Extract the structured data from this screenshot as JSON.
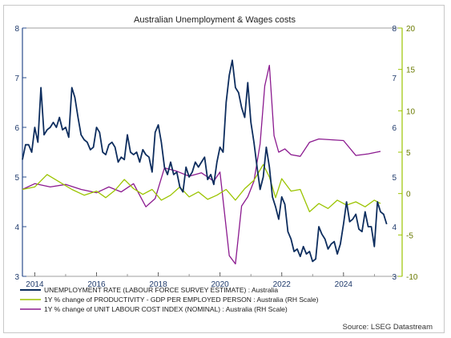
{
  "chart_data": {
    "type": "line",
    "title": "Australian Unemployment & Wages costs",
    "source": "Source: LSEG Datastream",
    "x_ticks": [
      "2014",
      "2016",
      "2018",
      "2020",
      "2022",
      "2024"
    ],
    "xlim": [
      2013.6,
      2025.9
    ],
    "left_axis": {
      "ylim": [
        3,
        8
      ],
      "ticks": [
        "3",
        "4",
        "5",
        "6",
        "7",
        "8"
      ],
      "color": "#2b4e8c"
    },
    "right_axis": {
      "ylim": [
        -10,
        20
      ],
      "ticks": [
        "-10",
        "-5",
        "0",
        "5",
        "10",
        "15",
        "20"
      ],
      "color": "#9bc400"
    },
    "grid": false,
    "legend_position": "bottom-left",
    "series": [
      {
        "name": "UNEMPLOYMENT RATE (LABOUR FORCE SURVEY ESTIMATE) : Australia",
        "axis": "left",
        "color": "#0d2d5e",
        "x": [
          2013.6,
          2013.7,
          2013.8,
          2013.9,
          2014.0,
          2014.1,
          2014.2,
          2014.3,
          2014.4,
          2014.5,
          2014.6,
          2014.7,
          2014.8,
          2014.9,
          2015.0,
          2015.1,
          2015.2,
          2015.3,
          2015.4,
          2015.5,
          2015.6,
          2015.7,
          2015.8,
          2015.9,
          2016.0,
          2016.1,
          2016.2,
          2016.3,
          2016.4,
          2016.5,
          2016.6,
          2016.7,
          2016.8,
          2016.9,
          2017.0,
          2017.1,
          2017.2,
          2017.3,
          2017.4,
          2017.5,
          2017.6,
          2017.7,
          2017.8,
          2017.9,
          2018.0,
          2018.1,
          2018.2,
          2018.3,
          2018.4,
          2018.5,
          2018.6,
          2018.7,
          2018.8,
          2018.9,
          2019.0,
          2019.1,
          2019.2,
          2019.3,
          2019.4,
          2019.5,
          2019.6,
          2019.7,
          2019.8,
          2019.9,
          2020.0,
          2020.1,
          2020.2,
          2020.3,
          2020.4,
          2020.5,
          2020.6,
          2020.7,
          2020.8,
          2020.9,
          2021.0,
          2021.1,
          2021.2,
          2021.3,
          2021.4,
          2021.5,
          2021.6,
          2021.7,
          2021.8,
          2021.9,
          2022.0,
          2022.1,
          2022.2,
          2022.3,
          2022.4,
          2022.5,
          2022.6,
          2022.7,
          2022.8,
          2022.9,
          2023.0,
          2023.1,
          2023.2,
          2023.3,
          2023.4,
          2023.5,
          2023.6,
          2023.7,
          2023.8,
          2023.9,
          2024.0,
          2024.1,
          2024.2,
          2024.3,
          2024.4,
          2024.5,
          2024.6,
          2024.7,
          2024.8,
          2024.9,
          2025.0,
          2025.1,
          2025.2,
          2025.3,
          2025.4
        ],
        "y": [
          5.35,
          5.65,
          5.65,
          5.5,
          6.0,
          5.7,
          6.8,
          5.85,
          5.95,
          6.0,
          6.1,
          6.0,
          6.2,
          5.95,
          6.0,
          5.8,
          6.8,
          6.6,
          6.2,
          5.85,
          5.75,
          5.7,
          5.55,
          5.6,
          6.0,
          5.9,
          5.5,
          5.45,
          5.65,
          5.7,
          5.6,
          5.3,
          5.4,
          5.35,
          5.85,
          5.5,
          5.45,
          5.5,
          5.3,
          5.55,
          5.45,
          5.4,
          5.1,
          5.9,
          6.05,
          5.7,
          5.2,
          5.05,
          5.3,
          5.05,
          5.1,
          4.8,
          4.7,
          5.2,
          5.0,
          5.1,
          5.3,
          5.2,
          5.3,
          5.4,
          4.95,
          5.05,
          4.85,
          5.3,
          5.6,
          5.5,
          6.5,
          7.05,
          7.35,
          6.8,
          6.7,
          6.4,
          6.2,
          6.9,
          6.1,
          5.7,
          5.2,
          4.75,
          5.0,
          5.6,
          5.2,
          4.6,
          4.4,
          4.15,
          4.6,
          4.45,
          3.9,
          3.75,
          3.5,
          3.55,
          3.4,
          3.6,
          3.45,
          3.5,
          3.3,
          3.35,
          4.0,
          3.85,
          3.75,
          3.55,
          3.65,
          3.7,
          3.45,
          3.65,
          4.05,
          4.5,
          4.1,
          4.15,
          4.25,
          3.95,
          3.9,
          4.3,
          4.0,
          4.0,
          3.6,
          4.5,
          4.3,
          4.25,
          4.05
        ],
        "x_end": [
          2025.4
        ]
      },
      {
        "name": "1Y % change of PRODUCTIVITY - GDP PER EMPLOYED PERSON : Australia (RH Scale)",
        "axis": "right",
        "color": "#9bc400",
        "x": [
          2013.6,
          2014.0,
          2014.4,
          2014.8,
          2015.2,
          2015.6,
          2016.0,
          2016.3,
          2016.6,
          2016.9,
          2017.2,
          2017.5,
          2017.8,
          2018.1,
          2018.4,
          2018.7,
          2019.0,
          2019.3,
          2019.6,
          2019.9,
          2020.2,
          2020.5,
          2020.8,
          2021.1,
          2021.4,
          2021.6,
          2021.8,
          2022.0,
          2022.3,
          2022.6,
          2022.9,
          2023.2,
          2023.5,
          2023.8,
          2024.1,
          2024.4,
          2024.7,
          2025.0,
          2025.2
        ],
        "y": [
          0.5,
          0.8,
          2.3,
          1.4,
          0.5,
          -0.2,
          0.3,
          -0.5,
          0.4,
          1.7,
          0.6,
          -0.1,
          0.5,
          -0.8,
          -0.2,
          0.8,
          -0.4,
          0.2,
          -0.7,
          -0.2,
          0.5,
          -0.8,
          0.6,
          1.6,
          3.5,
          2.0,
          -0.5,
          1.8,
          0.3,
          0.5,
          -2.2,
          -1.2,
          -1.8,
          -0.8,
          -1.4,
          -1.0,
          -1.6,
          -0.8,
          -1.2
        ]
      },
      {
        "name": "1Y % change of UNIT LABOUR COST INDEX (NOMINAL) : Australia (RH Scale)",
        "axis": "right",
        "color": "#8b1a8f",
        "x": [
          2013.6,
          2014.0,
          2014.5,
          2015.0,
          2015.5,
          2016.0,
          2016.4,
          2016.8,
          2017.2,
          2017.6,
          2017.9,
          2018.2,
          2018.6,
          2019.0,
          2019.4,
          2019.8,
          2020.0,
          2020.3,
          2020.5,
          2020.7,
          2020.9,
          2021.1,
          2021.3,
          2021.45,
          2021.6,
          2021.75,
          2021.9,
          2022.1,
          2022.3,
          2022.6,
          2022.9,
          2023.2,
          2023.6,
          2024.0,
          2024.4,
          2024.8,
          2025.2
        ],
        "y": [
          0.5,
          1.2,
          0.8,
          1.1,
          0.5,
          0.1,
          0.8,
          0.2,
          1.2,
          -1.6,
          -0.6,
          3.1,
          2.7,
          2.1,
          2.5,
          1.5,
          2.6,
          -7.5,
          -8.5,
          -1.5,
          -0.4,
          1.5,
          6.0,
          13.0,
          15.5,
          7.0,
          5.0,
          5.4,
          4.7,
          4.5,
          6.2,
          6.6,
          6.5,
          6.4,
          4.6,
          4.8,
          5.1
        ]
      }
    ]
  }
}
